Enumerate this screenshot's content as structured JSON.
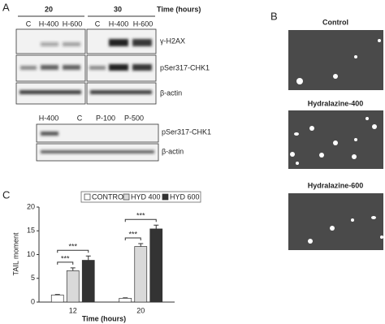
{
  "panel_labels": [
    "A",
    "B",
    "C"
  ],
  "panel_a": {
    "top_blot": {
      "time_points": [
        "20",
        "30"
      ],
      "time_unit": "Time (hours)",
      "lanes": [
        "C",
        "H-400",
        "H-600",
        "C",
        "H-400",
        "H-600"
      ],
      "rows": [
        "γ-H2AX",
        "pSer317-CHK1",
        "β-actin"
      ]
    },
    "bottom_blot": {
      "lanes": [
        "H-400",
        "C",
        "P-100",
        "P-500"
      ],
      "rows": [
        "pSer317-CHK1",
        "β-actin"
      ]
    }
  },
  "panel_b": {
    "images": [
      "Control",
      "Hydralazine-400",
      "Hydralazine-600"
    ]
  },
  "chart_data": {
    "type": "bar",
    "ylabel": "TAIL moment",
    "xlabel": "Time (hours)",
    "categories": [
      "12",
      "20"
    ],
    "series": [
      {
        "name": "CONTROL",
        "color": "#ffffff",
        "values": [
          1.5,
          0.8
        ],
        "errors": [
          0.1,
          0.1
        ]
      },
      {
        "name": "HYD 400",
        "color": "#d9d9d9",
        "values": [
          6.6,
          11.7
        ],
        "errors": [
          0.6,
          0.6
        ]
      },
      {
        "name": "HYD 600",
        "color": "#333333",
        "values": [
          8.8,
          15.4
        ],
        "errors": [
          0.9,
          0.8
        ]
      }
    ],
    "annotations": [
      "***",
      "***",
      "***",
      "***"
    ],
    "ylim": [
      0,
      20
    ],
    "yticks": [
      0,
      5,
      10,
      15,
      20
    ]
  }
}
